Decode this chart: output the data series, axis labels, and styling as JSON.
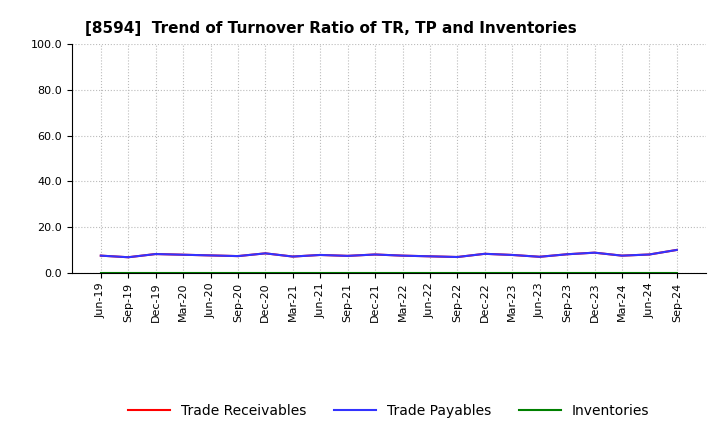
{
  "title": "[8594]  Trend of Turnover Ratio of TR, TP and Inventories",
  "x_labels": [
    "Jun-19",
    "Sep-19",
    "Dec-19",
    "Mar-20",
    "Jun-20",
    "Sep-20",
    "Dec-20",
    "Mar-21",
    "Jun-21",
    "Sep-21",
    "Dec-21",
    "Mar-22",
    "Jun-22",
    "Sep-22",
    "Dec-22",
    "Mar-23",
    "Jun-23",
    "Sep-23",
    "Dec-23",
    "Mar-24",
    "Jun-24",
    "Sep-24"
  ],
  "ylim": [
    0.0,
    100.0
  ],
  "yticks": [
    0.0,
    20.0,
    40.0,
    60.0,
    80.0,
    100.0
  ],
  "trade_receivables": [
    7.5,
    6.8,
    8.2,
    7.9,
    7.6,
    7.3,
    8.5,
    7.1,
    7.8,
    7.4,
    8.0,
    7.5,
    7.2,
    6.9,
    8.3,
    7.8,
    7.0,
    8.1,
    8.8,
    7.5,
    8.0,
    10.0
  ],
  "trade_payables": [
    7.5,
    6.8,
    8.2,
    7.9,
    7.6,
    7.3,
    8.5,
    7.1,
    7.8,
    7.4,
    8.0,
    7.5,
    7.2,
    6.9,
    8.3,
    7.8,
    7.0,
    8.1,
    8.8,
    7.5,
    8.0,
    10.0
  ],
  "inventories": [
    0.05,
    0.05,
    0.05,
    0.05,
    0.05,
    0.05,
    0.05,
    0.05,
    0.05,
    0.05,
    0.05,
    0.05,
    0.05,
    0.05,
    0.05,
    0.05,
    0.05,
    0.05,
    0.05,
    0.05,
    0.05,
    0.05
  ],
  "color_tr": "#ff0000",
  "color_tp": "#3333ff",
  "color_inv": "#008000",
  "legend_labels": [
    "Trade Receivables",
    "Trade Payables",
    "Inventories"
  ],
  "bg_color": "#ffffff",
  "grid_color": "#bbbbbb",
  "title_fontsize": 11,
  "tick_fontsize": 8,
  "legend_fontsize": 10
}
